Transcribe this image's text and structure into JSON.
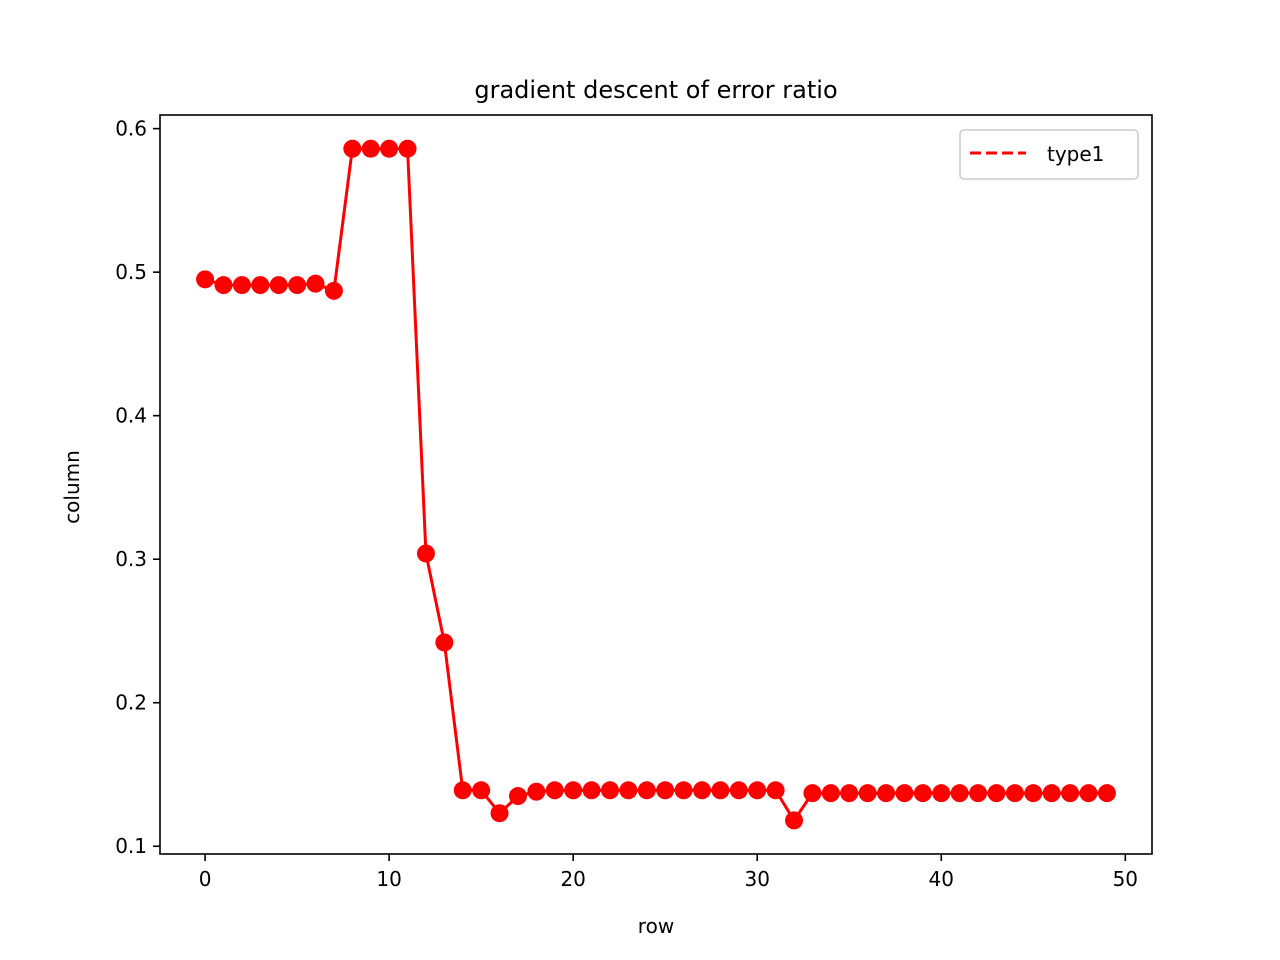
{
  "chart_data": {
    "type": "line",
    "title": "gradient descent of error ratio",
    "xlabel": "row",
    "ylabel": "column",
    "xlim": [
      -2.45,
      51.45
    ],
    "ylim": [
      0.0946,
      0.6095
    ],
    "xticks": [
      0,
      10,
      20,
      30,
      40,
      50
    ],
    "yticks": [
      0.1,
      0.2,
      0.3,
      0.4,
      0.5,
      0.6
    ],
    "xtick_labels": [
      "0",
      "10",
      "20",
      "30",
      "40",
      "50"
    ],
    "ytick_labels": [
      "0.1",
      "0.2",
      "0.3",
      "0.4",
      "0.5",
      "0.6"
    ],
    "grid": false,
    "legend": {
      "position": "upper right",
      "entries": [
        {
          "label": "type1",
          "style": "dashed"
        }
      ]
    },
    "series": [
      {
        "name": "type1",
        "color": "#ff0000",
        "marker": "circle",
        "x": [
          0,
          1,
          2,
          3,
          4,
          5,
          6,
          7,
          8,
          9,
          10,
          11,
          12,
          13,
          14,
          15,
          16,
          17,
          18,
          19,
          20,
          21,
          22,
          23,
          24,
          25,
          26,
          27,
          28,
          29,
          30,
          31,
          32,
          33,
          34,
          35,
          36,
          37,
          38,
          39,
          40,
          41,
          42,
          43,
          44,
          45,
          46,
          47,
          48,
          49
        ],
        "y": [
          0.495,
          0.491,
          0.491,
          0.491,
          0.491,
          0.491,
          0.492,
          0.487,
          0.586,
          0.586,
          0.586,
          0.586,
          0.304,
          0.242,
          0.139,
          0.139,
          0.123,
          0.135,
          0.138,
          0.139,
          0.139,
          0.139,
          0.139,
          0.139,
          0.139,
          0.139,
          0.139,
          0.139,
          0.139,
          0.139,
          0.139,
          0.139,
          0.118,
          0.137,
          0.137,
          0.137,
          0.137,
          0.137,
          0.137,
          0.137,
          0.137,
          0.137,
          0.137,
          0.137,
          0.137,
          0.137,
          0.137,
          0.137,
          0.137,
          0.137
        ]
      }
    ]
  }
}
